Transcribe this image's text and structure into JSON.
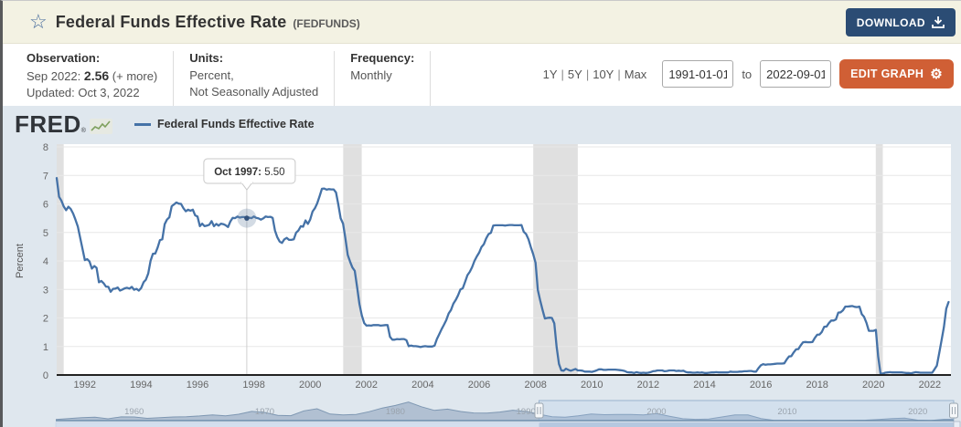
{
  "header": {
    "title": "Federal Funds Effective Rate",
    "series_id": "(FEDFUNDS)",
    "download_label": "DOWNLOAD"
  },
  "meta": {
    "observation": {
      "label": "Observation:",
      "date": "Sep 2022:",
      "value": "2.56",
      "more": "(+ more)",
      "updated": "Updated: Oct 3, 2022"
    },
    "units": {
      "label": "Units:",
      "line1": "Percent,",
      "line2": "Not Seasonally Adjusted"
    },
    "frequency": {
      "label": "Frequency:",
      "value": "Monthly"
    }
  },
  "controls": {
    "ranges": [
      "1Y",
      "5Y",
      "10Y",
      "Max"
    ],
    "range_separator": "|",
    "date_start": "1991-01-01",
    "date_end": "2022-09-01",
    "to_label": "to",
    "edit_graph_label": "EDIT GRAPH",
    "gear_icon": "⚙"
  },
  "chart_header": {
    "logo_text": "FRED",
    "logo_mark": "®",
    "legend_label": "Federal Funds Effective Rate"
  },
  "tooltip": {
    "date_label": "Oct 1997:",
    "value_label": "5.50"
  },
  "colors": {
    "line": "#4572a7",
    "panel_bg": "#dfe7ee",
    "recession_band": "#e0e0e0",
    "download_btn": "#2b4c74",
    "edit_btn": "#d05f35",
    "header_bg": "#f3f2e3"
  },
  "chart_data": {
    "type": "line",
    "title": "Federal Funds Effective Rate",
    "ylabel": "Percent",
    "ylim": [
      0,
      8
    ],
    "grid": true,
    "legend_position": "top-left",
    "y_ticks": [
      0,
      1,
      2,
      3,
      4,
      5,
      6,
      7,
      8
    ],
    "x_ticks": [
      1992,
      1994,
      1996,
      1998,
      2000,
      2002,
      2004,
      2006,
      2008,
      2010,
      2012,
      2014,
      2016,
      2018,
      2020,
      2022
    ],
    "x_range": [
      1991.0,
      2022.75
    ],
    "frequency": "Monthly",
    "start": "1991-01",
    "end": "2022-09",
    "values": [
      6.91,
      6.25,
      6.12,
      5.91,
      5.78,
      5.9,
      5.82,
      5.66,
      5.45,
      5.21,
      4.81,
      4.43,
      4.03,
      4.06,
      3.98,
      3.73,
      3.82,
      3.76,
      3.25,
      3.3,
      3.22,
      3.1,
      3.09,
      2.92,
      3.02,
      3.03,
      3.07,
      2.96,
      3.0,
      3.04,
      3.06,
      3.03,
      3.09,
      2.99,
      3.02,
      2.96,
      3.05,
      3.25,
      3.34,
      3.56,
      4.01,
      4.25,
      4.26,
      4.47,
      4.73,
      4.76,
      5.29,
      5.45,
      5.53,
      5.92,
      5.98,
      6.05,
      6.01,
      6.0,
      5.85,
      5.74,
      5.8,
      5.76,
      5.8,
      5.6,
      5.56,
      5.22,
      5.31,
      5.22,
      5.24,
      5.27,
      5.4,
      5.22,
      5.3,
      5.24,
      5.31,
      5.29,
      5.25,
      5.19,
      5.39,
      5.51,
      5.5,
      5.56,
      5.52,
      5.54,
      5.54,
      5.5,
      5.52,
      5.5,
      5.56,
      5.51,
      5.49,
      5.45,
      5.49,
      5.56,
      5.54,
      5.55,
      5.51,
      5.07,
      4.83,
      4.68,
      4.63,
      4.76,
      4.81,
      4.74,
      4.74,
      4.76,
      4.99,
      5.07,
      5.22,
      5.2,
      5.42,
      5.3,
      5.45,
      5.73,
      5.85,
      6.02,
      6.27,
      6.53,
      6.54,
      6.5,
      6.52,
      6.51,
      6.51,
      6.4,
      5.98,
      5.49,
      5.31,
      4.8,
      4.21,
      3.97,
      3.77,
      3.65,
      3.07,
      2.49,
      2.09,
      1.82,
      1.73,
      1.74,
      1.73,
      1.75,
      1.75,
      1.75,
      1.73,
      1.74,
      1.75,
      1.75,
      1.34,
      1.24,
      1.24,
      1.26,
      1.25,
      1.26,
      1.26,
      1.22,
      1.01,
      1.03,
      1.01,
      1.01,
      1.0,
      0.98,
      1.0,
      1.01,
      1.0,
      1.0,
      1.0,
      1.03,
      1.26,
      1.43,
      1.61,
      1.76,
      1.93,
      2.16,
      2.28,
      2.5,
      2.63,
      2.79,
      3.0,
      3.04,
      3.26,
      3.5,
      3.62,
      3.78,
      4.0,
      4.16,
      4.29,
      4.49,
      4.59,
      4.79,
      4.94,
      4.99,
      5.24,
      5.25,
      5.25,
      5.25,
      5.25,
      5.24,
      5.25,
      5.26,
      5.26,
      5.25,
      5.25,
      5.25,
      5.26,
      5.02,
      4.94,
      4.76,
      4.49,
      4.24,
      3.94,
      2.98,
      2.61,
      2.28,
      1.98,
      2.0,
      2.01,
      2.0,
      1.81,
      0.97,
      0.39,
      0.16,
      0.15,
      0.22,
      0.18,
      0.15,
      0.18,
      0.21,
      0.16,
      0.16,
      0.15,
      0.12,
      0.12,
      0.12,
      0.11,
      0.13,
      0.16,
      0.2,
      0.2,
      0.18,
      0.18,
      0.19,
      0.19,
      0.19,
      0.19,
      0.18,
      0.17,
      0.16,
      0.14,
      0.1,
      0.09,
      0.09,
      0.07,
      0.1,
      0.08,
      0.07,
      0.08,
      0.07,
      0.08,
      0.1,
      0.13,
      0.14,
      0.16,
      0.16,
      0.16,
      0.13,
      0.14,
      0.16,
      0.16,
      0.16,
      0.14,
      0.15,
      0.14,
      0.15,
      0.11,
      0.09,
      0.09,
      0.08,
      0.08,
      0.09,
      0.08,
      0.09,
      0.07,
      0.07,
      0.08,
      0.09,
      0.09,
      0.1,
      0.09,
      0.09,
      0.09,
      0.09,
      0.09,
      0.12,
      0.11,
      0.11,
      0.11,
      0.12,
      0.12,
      0.13,
      0.13,
      0.14,
      0.14,
      0.12,
      0.12,
      0.24,
      0.34,
      0.38,
      0.36,
      0.37,
      0.37,
      0.38,
      0.39,
      0.4,
      0.4,
      0.4,
      0.41,
      0.54,
      0.65,
      0.66,
      0.79,
      0.9,
      0.91,
      1.04,
      1.15,
      1.16,
      1.15,
      1.15,
      1.16,
      1.3,
      1.41,
      1.42,
      1.51,
      1.69,
      1.7,
      1.82,
      1.91,
      1.91,
      1.95,
      2.19,
      2.2,
      2.27,
      2.4,
      2.4,
      2.41,
      2.42,
      2.39,
      2.38,
      2.4,
      2.13,
      2.04,
      1.83,
      1.55,
      1.55,
      1.55,
      1.58,
      0.65,
      0.05,
      0.05,
      0.08,
      0.09,
      0.1,
      0.09,
      0.09,
      0.09,
      0.09,
      0.09,
      0.08,
      0.07,
      0.07,
      0.06,
      0.08,
      0.1,
      0.09,
      0.08,
      0.08,
      0.08,
      0.08,
      0.08,
      0.08,
      0.2,
      0.33,
      0.77,
      1.21,
      1.68,
      2.33,
      2.56
    ],
    "recessions": [
      [
        1991.0,
        1991.25
      ],
      [
        2001.17,
        2001.83
      ],
      [
        2007.92,
        2009.5
      ],
      [
        2020.08,
        2020.33
      ]
    ],
    "highlight": {
      "x_year": 1997.75,
      "y": 5.5
    },
    "navigator": {
      "start_year": 1954,
      "end_year": 2022,
      "decade_labels": [
        1960,
        1970,
        1980,
        1990,
        2000,
        2010,
        2020
      ],
      "selected": [
        1991.0,
        2022.75
      ],
      "values": [
        1.0,
        1.8,
        2.7,
        3.1,
        1.6,
        3.3,
        3.2,
        2.0,
        2.7,
        3.2,
        3.5,
        4.1,
        5.1,
        4.2,
        5.7,
        8.2,
        7.2,
        4.7,
        4.4,
        8.7,
        10.5,
        5.8,
        5.0,
        5.5,
        7.9,
        11.2,
        13.4,
        16.4,
        12.3,
        9.1,
        10.2,
        8.1,
        6.8,
        6.7,
        7.6,
        9.2,
        8.1,
        5.7,
        3.5,
        3.0,
        4.2,
        5.8,
        5.3,
        5.5,
        5.4,
        5.0,
        6.2,
        3.9,
        1.7,
        1.1,
        1.4,
        3.2,
        5.0,
        5.0,
        1.9,
        0.16,
        0.18,
        0.1,
        0.14,
        0.11,
        0.09,
        0.13,
        0.4,
        1.0,
        1.8,
        2.2,
        0.4,
        0.08,
        1.2
      ]
    }
  }
}
